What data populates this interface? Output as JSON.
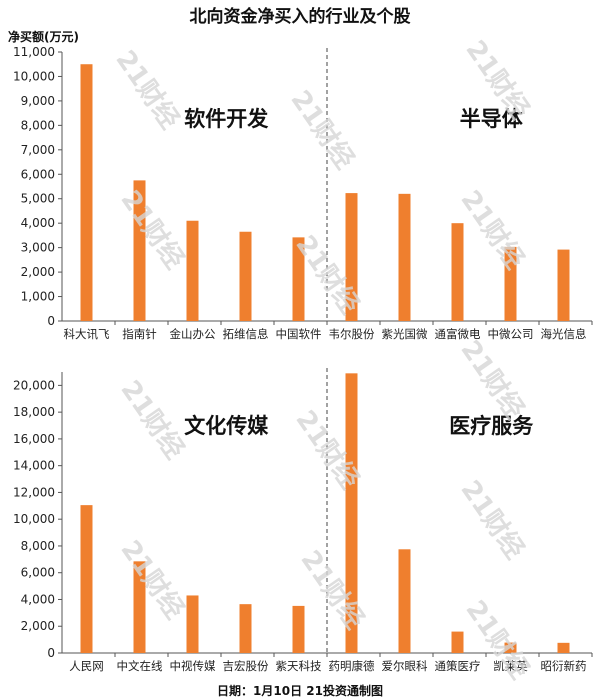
{
  "title": "北向资金净买入的行业及个股",
  "unit_label": "净买额(万元)",
  "footer": "日期：1月10日 21投资通制图",
  "watermark_text": "21财经",
  "colors": {
    "bar": "#ef7f2e",
    "axis": "#555555",
    "divider": "#444444"
  },
  "chart_data": [
    {
      "type": "bar",
      "ylabel": "净买额(万元)",
      "ylim": [
        0,
        11000
      ],
      "yticks": [
        0,
        1000,
        2000,
        3000,
        4000,
        5000,
        6000,
        7000,
        8000,
        9000,
        10000,
        11000
      ],
      "ytick_labels": [
        "0",
        "1,000",
        "2,000",
        "3,000",
        "4,000",
        "5,000",
        "6,000",
        "7,000",
        "8,000",
        "9,000",
        "10,000",
        "11,000"
      ],
      "groups": [
        "软件开发",
        "半导体"
      ],
      "categories": [
        "科大讯飞",
        "指南针",
        "金山办公",
        "拓维信息",
        "中国软件",
        "韦尔股份",
        "紫光国微",
        "通富微电",
        "中微公司",
        "海光信息"
      ],
      "values": [
        10500,
        5750,
        4100,
        3650,
        3420,
        5230,
        5200,
        4000,
        3030,
        2920
      ]
    },
    {
      "type": "bar",
      "ylim": [
        0,
        21000
      ],
      "yticks": [
        0,
        2000,
        4000,
        6000,
        8000,
        10000,
        12000,
        14000,
        16000,
        18000,
        20000
      ],
      "ytick_labels": [
        "0",
        "2,000",
        "4,000",
        "6,000",
        "8,000",
        "10,000",
        "12,000",
        "14,000",
        "16,000",
        "18,000",
        "20,000"
      ],
      "groups": [
        "文化传媒",
        "医疗服务"
      ],
      "categories": [
        "人民网",
        "中文在线",
        "中视传媒",
        "吉宏股份",
        "紫天科技",
        "药明康德",
        "爱尔眼科",
        "通策医疗",
        "凯莱英",
        "昭衍新药"
      ],
      "values": [
        11050,
        6850,
        4300,
        3650,
        3520,
        20900,
        7750,
        1600,
        780,
        760
      ]
    }
  ]
}
